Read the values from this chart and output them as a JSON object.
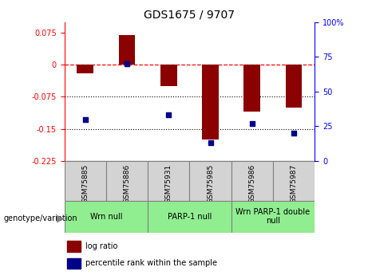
{
  "title": "GDS1675 / 9707",
  "samples": [
    "GSM75885",
    "GSM75886",
    "GSM75931",
    "GSM75985",
    "GSM75986",
    "GSM75987"
  ],
  "log_ratios": [
    -0.02,
    0.07,
    -0.05,
    -0.175,
    -0.11,
    -0.1
  ],
  "percentile_ranks": [
    30,
    70,
    33,
    13,
    27,
    20
  ],
  "groups": [
    {
      "label": "Wrn null",
      "color": "#90EE90",
      "start": 0,
      "end": 1
    },
    {
      "label": "PARP-1 null",
      "color": "#90EE90",
      "start": 2,
      "end": 3
    },
    {
      "label": "Wrn PARP-1 double\nnull",
      "color": "#90EE90",
      "start": 4,
      "end": 5
    }
  ],
  "bar_color": "#8B0000",
  "dot_color": "#00008B",
  "left_ylim": [
    -0.225,
    0.1
  ],
  "left_yticks": [
    0.075,
    0,
    -0.075,
    -0.15,
    -0.225
  ],
  "left_yticklabels": [
    "0.075",
    "0",
    "-0.075",
    "-0.15",
    "-0.225"
  ],
  "right_ylim": [
    0,
    100
  ],
  "right_yticks": [
    100,
    75,
    50,
    25,
    0
  ],
  "right_yticklabels": [
    "100%",
    "75",
    "50",
    "25",
    "0"
  ],
  "hline_y": 0,
  "dotted_lines": [
    -0.075,
    -0.15
  ],
  "bar_width": 0.4,
  "sample_box_color": "#d3d3d3",
  "genotype_label": "genotype/variation",
  "legend_bar_label": "log ratio",
  "legend_dot_label": "percentile rank within the sample"
}
